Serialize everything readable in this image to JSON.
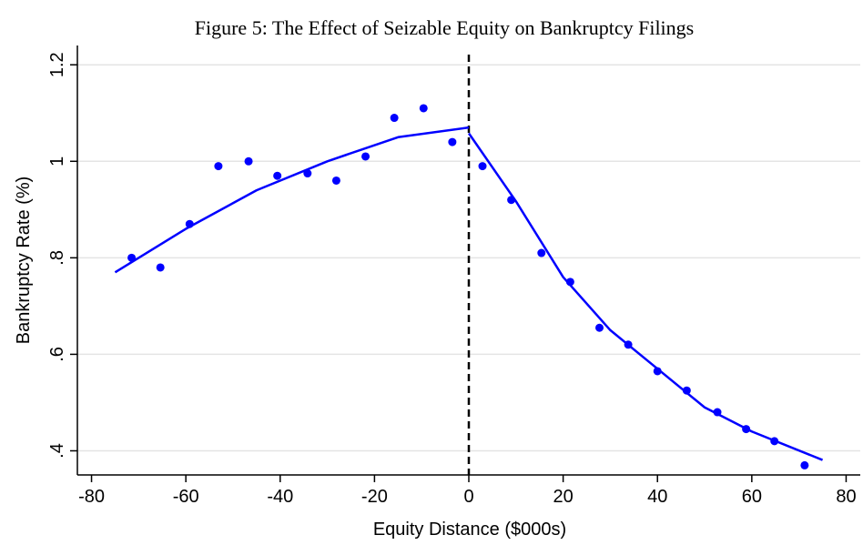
{
  "chart_data": {
    "type": "scatter",
    "title": "Figure 5: The Effect of Seizable Equity on Bankruptcy Filings",
    "xlabel": "Equity Distance ($000s)",
    "ylabel": "Bankruptcy Rate (%)",
    "xlim": [
      -83,
      83
    ],
    "ylim": [
      0.35,
      1.24
    ],
    "xticks": [
      -80,
      -60,
      -40,
      -20,
      0,
      20,
      40,
      60,
      80
    ],
    "yticks": [
      {
        "value": 0.4,
        "label": ".4"
      },
      {
        "value": 0.6,
        "label": ".6"
      },
      {
        "value": 0.8,
        "label": ".8"
      },
      1,
      1.2
    ],
    "grid": true,
    "vlines": [
      0
    ],
    "series": [
      {
        "type": "scatter",
        "color": "#0000ff",
        "x": [
          -71.5,
          -65.4,
          -59.2,
          -53.1,
          -46.7,
          -40.6,
          -34.2,
          -28.1,
          -21.9,
          -15.8,
          -9.6,
          -3.5,
          2.9,
          9.0,
          15.4,
          21.5,
          27.7,
          33.8,
          40.0,
          46.2,
          52.7,
          58.8,
          64.8,
          71.2
        ],
        "values": [
          0.8,
          0.78,
          0.87,
          0.99,
          1.0,
          0.97,
          0.975,
          0.96,
          1.01,
          1.09,
          1.11,
          1.04,
          0.99,
          0.92,
          0.81,
          0.75,
          0.655,
          0.62,
          0.565,
          0.525,
          0.48,
          0.445,
          0.42,
          0.37
        ]
      },
      {
        "type": "line",
        "color": "#0000ff",
        "x": [
          -75,
          -60,
          -45,
          -30,
          -15,
          0
        ],
        "values": [
          0.77,
          0.86,
          0.94,
          1.0,
          1.05,
          1.07
        ]
      },
      {
        "type": "line",
        "color": "#0000ff",
        "x": [
          0,
          10,
          20,
          30,
          40,
          50,
          60,
          75
        ],
        "values": [
          1.058,
          0.917,
          0.76,
          0.65,
          0.57,
          0.49,
          0.44,
          0.381
        ]
      }
    ]
  }
}
